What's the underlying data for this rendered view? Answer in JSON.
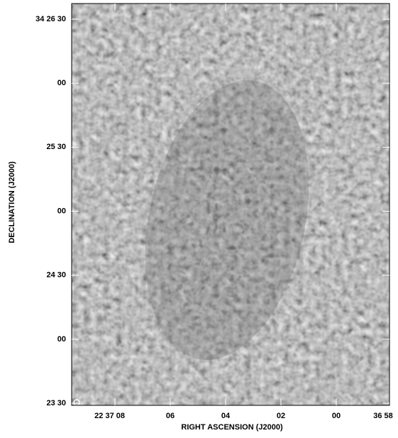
{
  "plot": {
    "x_label": "RIGHT ASCENSION (J2000)",
    "y_label": "DECLINATION (J2000)",
    "x_ticks": [
      "22 37 08",
      "06",
      "04",
      "02",
      "00",
      "36 58"
    ],
    "y_ticks": [
      "34 26 30",
      "00",
      "25 30",
      "00",
      "24 30",
      "00",
      "23 30"
    ]
  }
}
